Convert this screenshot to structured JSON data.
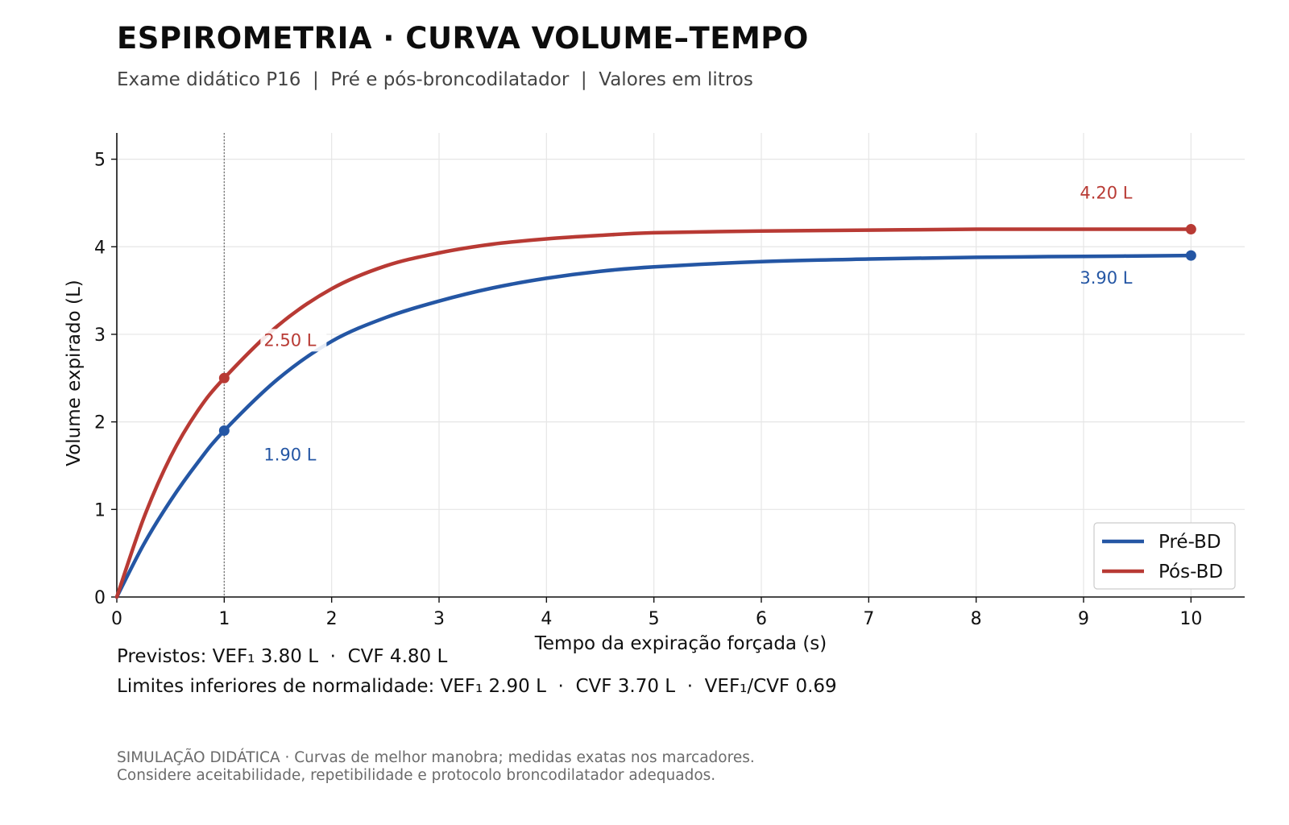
{
  "header": {
    "title": "ESPIROMETRIA · CURVA VOLUME–TEMPO",
    "subtitle": "Exame didático P16  |  Pré e pós-broncodilatador  |  Valores em litros"
  },
  "chart_data": {
    "type": "line",
    "xlabel": "Tempo da expiração forçada (s)",
    "ylabel": "Volume expirado (L)",
    "xlim": [
      0,
      10.5
    ],
    "ylim": [
      0,
      5.3
    ],
    "xticks": [
      "0",
      "1",
      "2",
      "3",
      "4",
      "5",
      "6",
      "7",
      "8",
      "9",
      "10"
    ],
    "yticks": [
      "0",
      "1",
      "2",
      "3",
      "4",
      "5"
    ],
    "grid": true,
    "legend_position": "bottom-right",
    "reference_line_x": 1,
    "series": [
      {
        "name": "Pré-BD",
        "color": "#2456a4",
        "x": [
          0,
          0.25,
          0.5,
          0.75,
          1,
          1.5,
          2,
          2.5,
          3,
          3.5,
          4,
          4.5,
          5,
          6,
          7,
          8,
          9,
          10
        ],
        "y": [
          0,
          0.6,
          1.1,
          1.53,
          1.9,
          2.49,
          2.92,
          3.19,
          3.38,
          3.53,
          3.64,
          3.72,
          3.77,
          3.83,
          3.86,
          3.88,
          3.89,
          3.9
        ],
        "markers": [
          {
            "x": 1,
            "y": 1.9,
            "label": "1.90 L"
          },
          {
            "x": 10,
            "y": 3.9,
            "label": "3.90 L"
          }
        ]
      },
      {
        "name": "Pós-BD",
        "color": "#b83a34",
        "x": [
          0,
          0.25,
          0.5,
          0.75,
          1,
          1.5,
          2,
          2.5,
          3,
          3.5,
          4,
          4.5,
          5,
          6,
          7,
          8,
          9,
          10
        ],
        "y": [
          0,
          0.9,
          1.6,
          2.12,
          2.5,
          3.1,
          3.52,
          3.78,
          3.93,
          4.03,
          4.09,
          4.13,
          4.16,
          4.18,
          4.19,
          4.2,
          4.2,
          4.2
        ],
        "markers": [
          {
            "x": 1,
            "y": 2.5,
            "label": "2.50 L"
          },
          {
            "x": 10,
            "y": 4.2,
            "label": "4.20 L"
          }
        ]
      }
    ]
  },
  "notes": {
    "predicted": "Previstos: VEF₁ 3.80 L  ·  CVF 4.80 L",
    "lower_limits": "Limites inferiores de normalidade: VEF₁ 2.90 L  ·  CVF 3.70 L  ·  VEF₁/CVF 0.69"
  },
  "footer": {
    "line1": "SIMULAÇÃO DIDÁTICA · Curvas de melhor manobra; medidas exatas nos marcadores.",
    "line2": "Considere aceitabilidade, repetibilidade e protocolo broncodilatador adequados."
  }
}
